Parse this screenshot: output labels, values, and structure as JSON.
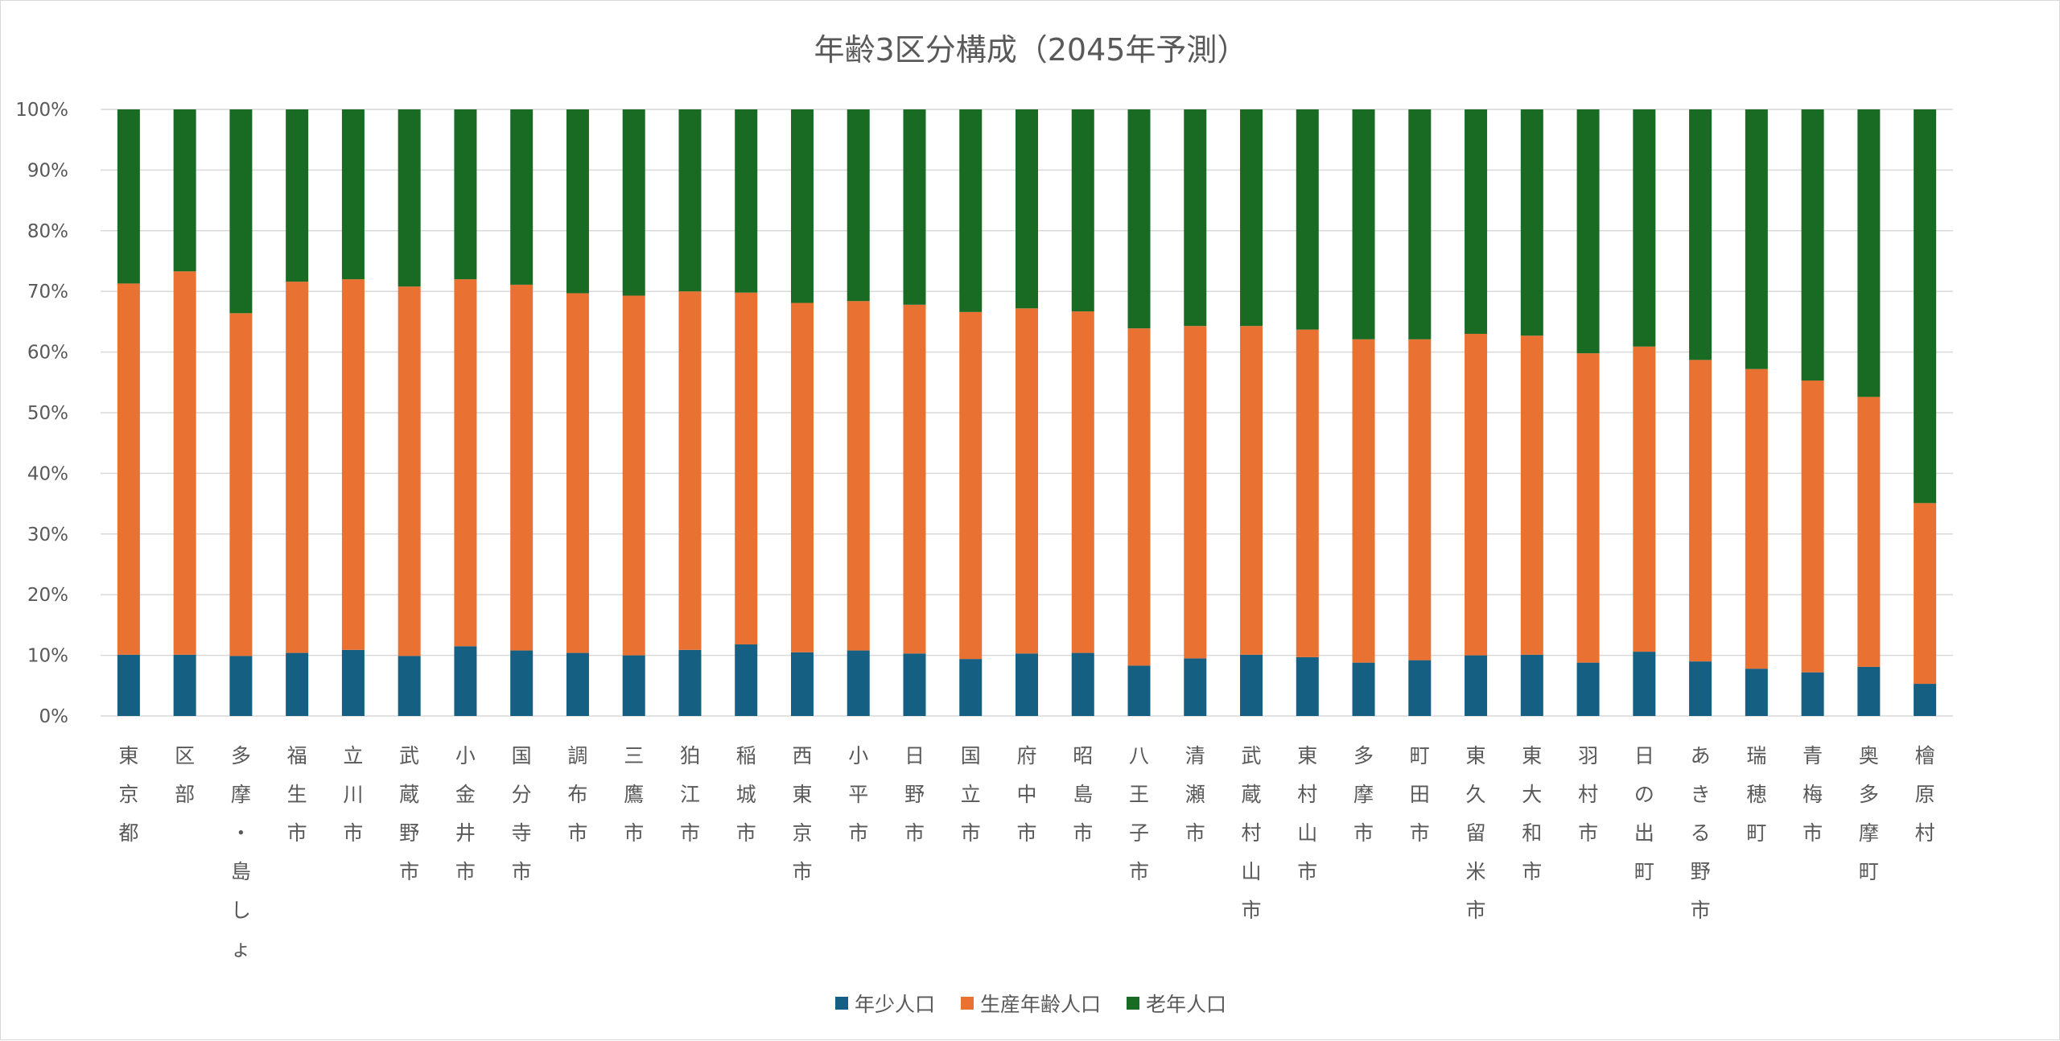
{
  "chart_data": {
    "type": "bar",
    "stacked": true,
    "title": "年齢3区分構成（2045年予測）",
    "ylim": [
      0,
      100
    ],
    "yticks": [
      "0%",
      "10%",
      "20%",
      "30%",
      "40%",
      "50%",
      "60%",
      "70%",
      "80%",
      "90%",
      "100%"
    ],
    "grid": true,
    "legend_position": "bottom",
    "categories": [
      "東京都",
      "区部",
      "多摩・島しょ",
      "福生市",
      "立川市",
      "武蔵野市",
      "小金井市",
      "国分寺市",
      "調布市",
      "三鷹市",
      "狛江市",
      "稲城市",
      "西東京市",
      "小平市",
      "日野市",
      "国立市",
      "府中市",
      "昭島市",
      "八王子市",
      "清瀬市",
      "武蔵村山市",
      "東村山市",
      "多摩市",
      "町田市",
      "東久留米市",
      "東大和市",
      "羽村市",
      "日の出町",
      "あきる野市",
      "瑞穂町",
      "青梅市",
      "奥多摩町",
      "檜原村"
    ],
    "series": [
      {
        "name": "年少人口",
        "color": "#156082",
        "values": [
          10.1,
          10.1,
          9.9,
          10.4,
          10.9,
          9.9,
          11.5,
          10.8,
          10.4,
          10.0,
          10.9,
          11.8,
          10.5,
          10.8,
          10.3,
          9.4,
          10.3,
          10.4,
          8.3,
          9.5,
          10.1,
          9.7,
          8.8,
          9.2,
          10.0,
          10.1,
          8.8,
          10.6,
          9.0,
          7.8,
          7.2,
          8.1,
          5.3
        ]
      },
      {
        "name": "生産年齢人口",
        "color": "#E97132",
        "values": [
          61.2,
          63.2,
          56.5,
          61.2,
          61.1,
          60.9,
          60.5,
          60.3,
          59.3,
          59.3,
          59.1,
          58.0,
          57.6,
          57.6,
          57.5,
          57.2,
          56.9,
          56.3,
          55.6,
          54.8,
          54.2,
          54.0,
          53.3,
          52.9,
          53.0,
          52.6,
          51.0,
          50.3,
          49.7,
          49.4,
          48.1,
          44.5,
          29.8
        ]
      },
      {
        "name": "老年人口",
        "color": "#196B24",
        "values": [
          28.7,
          26.7,
          33.6,
          28.4,
          28.0,
          29.2,
          28.0,
          28.9,
          30.3,
          30.7,
          30.0,
          30.2,
          31.9,
          31.6,
          32.2,
          33.4,
          32.8,
          33.3,
          36.1,
          35.7,
          35.7,
          36.3,
          37.9,
          37.9,
          37.0,
          37.3,
          40.2,
          39.1,
          41.3,
          42.8,
          44.7,
          47.4,
          64.9
        ]
      }
    ]
  }
}
